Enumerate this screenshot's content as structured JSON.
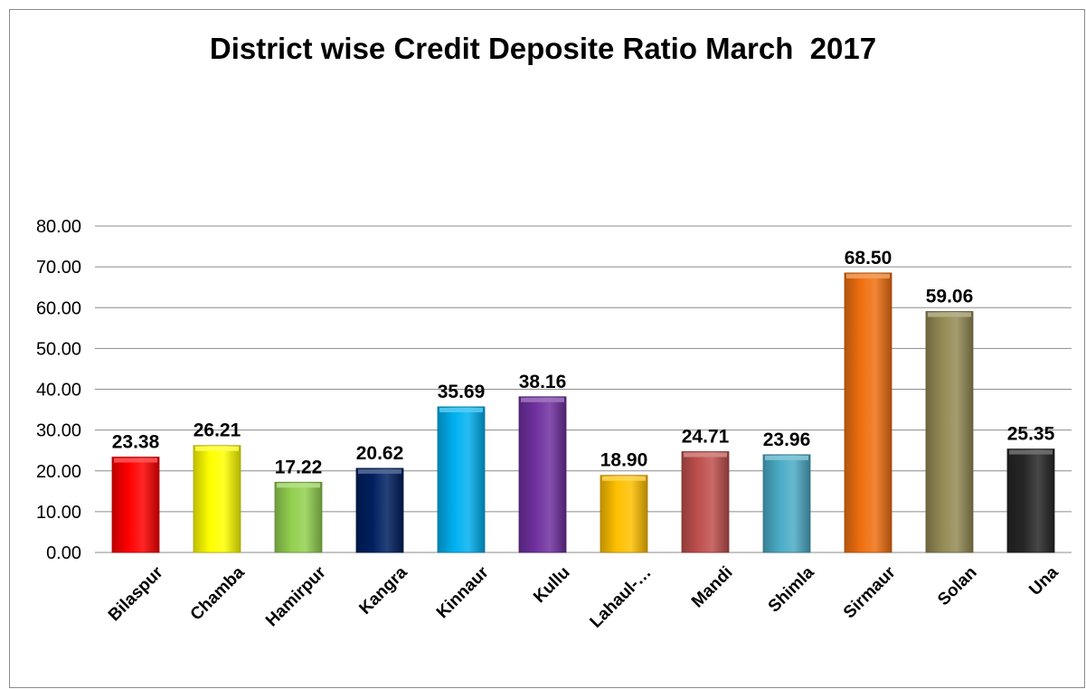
{
  "chart_data": {
    "type": "bar",
    "title": "District wise Credit Deposite Ratio March  2017",
    "xlabel": "",
    "ylabel": "",
    "categories": [
      "Bilaspur",
      "Chamba",
      "Hamirpur",
      "Kangra",
      "Kinnaur",
      "Kullu",
      "Lahaul-…",
      "Mandi",
      "Shimla",
      "Sirmaur",
      "Solan",
      "Una"
    ],
    "values": [
      23.38,
      26.21,
      17.22,
      20.62,
      35.69,
      38.16,
      18.9,
      24.71,
      23.96,
      68.5,
      59.06,
      25.35
    ],
    "value_labels": [
      "23.38",
      "26.21",
      "17.22",
      "20.62",
      "35.69",
      "38.16",
      "18.90",
      "24.71",
      "23.96",
      "68.50",
      "59.06",
      "25.35"
    ],
    "ylim": [
      0,
      80
    ],
    "yticks": [
      "0.00",
      "10.00",
      "20.00",
      "30.00",
      "40.00",
      "50.00",
      "60.00",
      "70.00",
      "80.00"
    ],
    "grid": true,
    "legend": "none",
    "colors": [
      "#ff0000",
      "#ffff00",
      "#92d050",
      "#002060",
      "#00b0f0",
      "#7030a0",
      "#ffc000",
      "#c0504d",
      "#4bacc6",
      "#f07010",
      "#948a54",
      "#262626"
    ]
  }
}
